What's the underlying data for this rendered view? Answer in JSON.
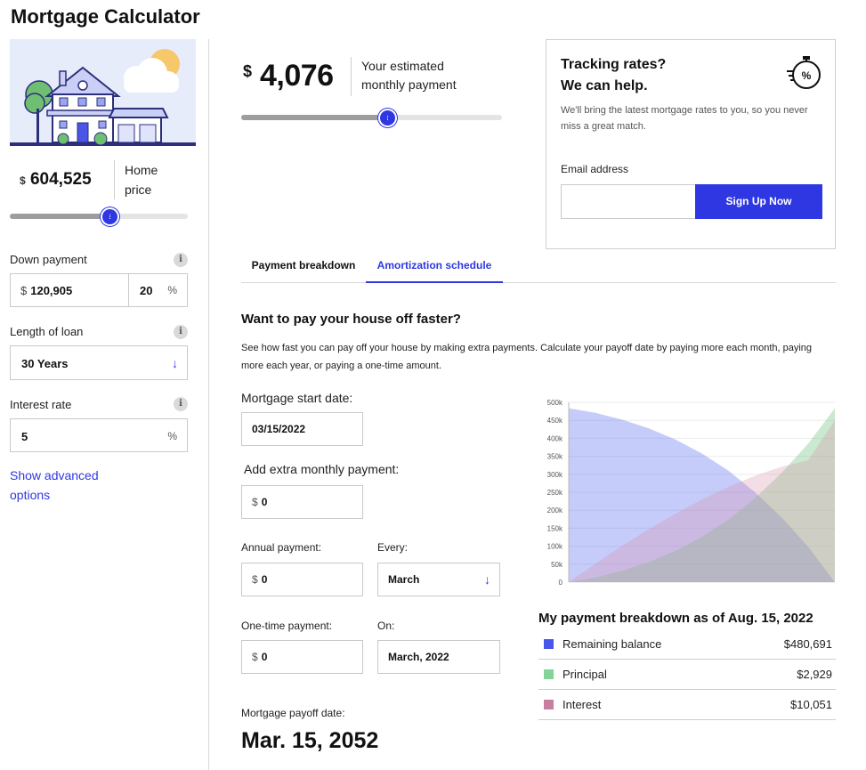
{
  "page": {
    "title": "Mortgage Calculator"
  },
  "home_price": {
    "currency": "$",
    "value": "604,525",
    "label": "Home price",
    "slider_fraction": 0.56
  },
  "down_payment": {
    "label": "Down payment",
    "currency": "$",
    "amount": "120,905",
    "percent": "20",
    "percent_symbol": "%"
  },
  "loan_length": {
    "label": "Length of loan",
    "value": "30 Years"
  },
  "interest_rate": {
    "label": "Interest rate",
    "value": "5",
    "percent_symbol": "%"
  },
  "advanced": {
    "link": "Show advanced options"
  },
  "estimate": {
    "currency": "$",
    "value": "4,076",
    "label": "Your estimated monthly payment",
    "slider_fraction": 0.56
  },
  "tracking": {
    "heading_line1": "Tracking rates?",
    "heading_line2": "We can help.",
    "text": "We'll bring the latest mortgage rates to you, so you never miss a great match.",
    "email_label": "Email address",
    "email_value": "",
    "button": "Sign Up Now"
  },
  "tabs": [
    {
      "label": "Payment breakdown",
      "active": false
    },
    {
      "label": "Amortization schedule",
      "active": true
    }
  ],
  "amortization": {
    "heading": "Want to pay your house off faster?",
    "description": "See how fast you can pay off your house by making extra payments. Calculate your payoff date by paying more each month, paying more each year, or paying a one-time amount.",
    "start_date_label": "Mortgage start date:",
    "start_date": "03/15/2022",
    "extra_monthly_label": "Add extra monthly payment:",
    "extra_monthly": "0",
    "annual_label": "Annual payment:",
    "annual": "0",
    "every_label": "Every:",
    "every": "March",
    "onetime_label": "One-time payment:",
    "onetime": "0",
    "on_label": "On:",
    "on": "March, 2022",
    "currency": "$",
    "payoff_label": "Mortgage payoff date:",
    "payoff_date": "Mar. 15, 2052"
  },
  "chart_data": {
    "type": "area",
    "title": "",
    "xlabel": "",
    "ylabel": "",
    "ylim": [
      0,
      500000
    ],
    "y_ticks": [
      "0",
      "50k",
      "100k",
      "150k",
      "200k",
      "250k",
      "300k",
      "350k",
      "400k",
      "450k",
      "500k"
    ],
    "x": [
      0,
      0.1,
      0.2,
      0.3,
      0.4,
      0.5,
      0.6,
      0.7,
      0.8,
      0.9,
      1.0
    ],
    "series": [
      {
        "name": "Remaining balance",
        "color": "#5b6df0",
        "values": [
          483620,
          471000,
          452000,
          428000,
          397000,
          358000,
          310000,
          250000,
          180000,
          98000,
          0
        ]
      },
      {
        "name": "Principal",
        "color": "#7ec98a",
        "values": [
          0,
          12500,
          31500,
          55600,
          86600,
          125600,
          173600,
          233600,
          303600,
          385600,
          483620
        ]
      },
      {
        "name": "Interest",
        "color": "#d98aa6",
        "values": [
          0,
          51500,
          100800,
          147000,
          190000,
          229500,
          265000,
          296000,
          321000,
          339000,
          450000
        ]
      }
    ]
  },
  "breakdown": {
    "title": "My payment breakdown as of Aug. 15, 2022",
    "rows": [
      {
        "label": "Remaining balance",
        "value": "$480,691",
        "color": "#4a56e8"
      },
      {
        "label": "Principal",
        "value": "$2,929",
        "color": "#86d39a"
      },
      {
        "label": "Interest",
        "value": "$10,051",
        "color": "#c77f9f"
      }
    ]
  }
}
